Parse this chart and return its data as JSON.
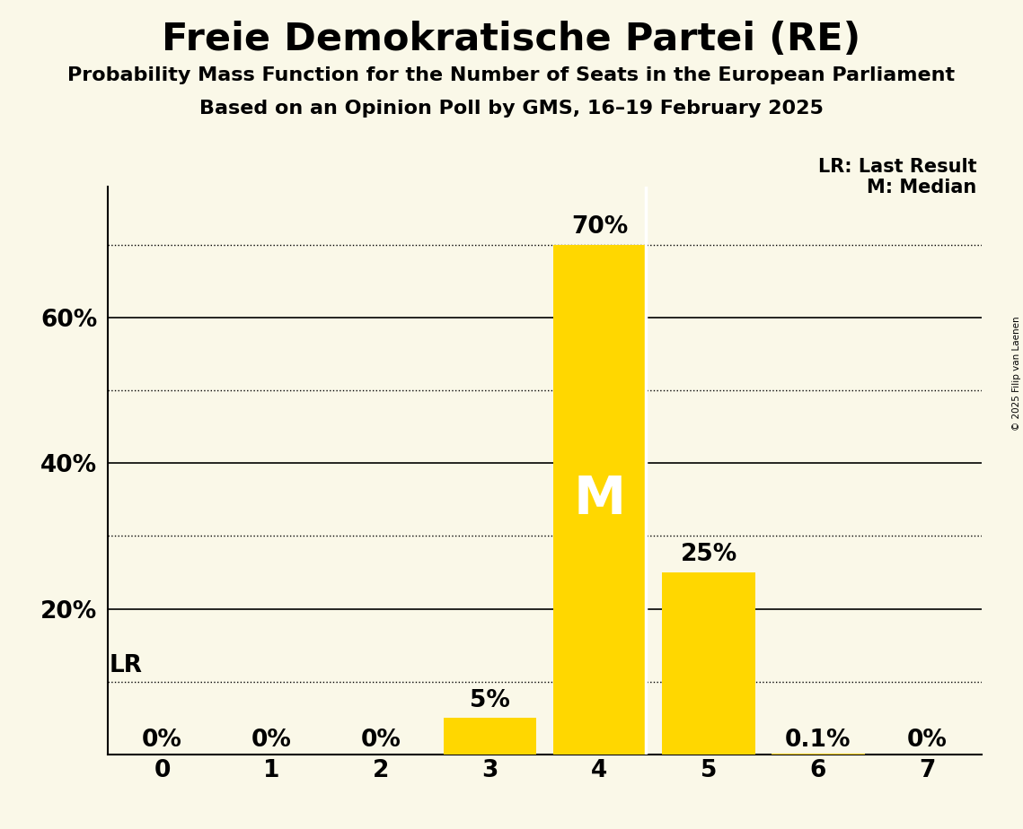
{
  "title": "Freie Demokratische Partei (RE)",
  "subtitle1": "Probability Mass Function for the Number of Seats in the European Parliament",
  "subtitle2": "Based on an Opinion Poll by GMS, 16–19 February 2025",
  "copyright": "© 2025 Filip van Laenen",
  "categories": [
    0,
    1,
    2,
    3,
    4,
    5,
    6,
    7
  ],
  "values": [
    0.0,
    0.0,
    0.0,
    0.05,
    0.7,
    0.25,
    0.001,
    0.0
  ],
  "bar_labels": [
    "0%",
    "0%",
    "0%",
    "5%",
    "70%",
    "25%",
    "0.1%",
    "0%"
  ],
  "bar_color": "#FFD700",
  "background_color": "#FAF8E8",
  "median_seat": 4,
  "median_label": "M",
  "lr_value": 0.1,
  "lr_label": "LR",
  "lr_legend": "LR: Last Result",
  "m_legend": "M: Median",
  "solid_lines": [
    0.2,
    0.4,
    0.6
  ],
  "dotted_lines": [
    0.1,
    0.3,
    0.5,
    0.7
  ],
  "ylim": [
    0,
    0.78
  ],
  "xlim": [
    -0.5,
    7.5
  ],
  "bar_width": 0.85
}
